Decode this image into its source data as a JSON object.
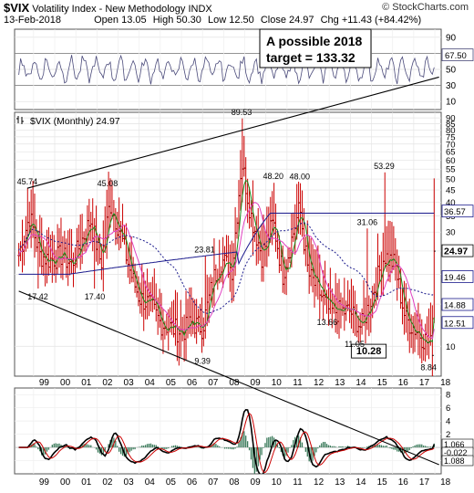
{
  "header": {
    "symbol": "$VIX",
    "name": "Volatility Index - New Methodology",
    "exchange": "INDX",
    "date": "13-Feb-2018",
    "open_label": "Open",
    "open": "13.05",
    "high_label": "High",
    "high": "50.30",
    "low_label": "Low",
    "low": "12.50",
    "close_label": "Close",
    "close": "24.97",
    "chg_label": "Chg",
    "chg": "+11.43 (+84.42%)",
    "credit": "© StockCharts.com"
  },
  "annotation": {
    "line1": "A possible 2018",
    "line2": "target = 133.32"
  },
  "colors": {
    "price_bars": "#cc0000",
    "ma_short": "#1a8a1a",
    "ma_mid": "#e040c0",
    "ma_long": "#1a1a8c",
    "ma_dashed": "#1a1a8c",
    "rsi_line": "#4a4a7a",
    "macd_line": "#000000",
    "signal_line": "#cc0000",
    "histogram": "#3a7a5a",
    "trendlines": "#000000",
    "frame": "#555555"
  },
  "chart_data": [
    {
      "type": "line",
      "panel": "rsi",
      "title": "",
      "ylim": [
        0,
        100
      ],
      "yticks": [
        10,
        30,
        50,
        70,
        90
      ],
      "reference_lines": [
        30,
        70
      ],
      "last_value_label": "67.50",
      "grid": true
    },
    {
      "type": "candlestick",
      "panel": "price",
      "title": "$VIX (Monthly) 24.97",
      "scale": "log",
      "ylim": [
        7.5,
        95
      ],
      "yticks": [
        10,
        15,
        20,
        25,
        30,
        35,
        40,
        45,
        50,
        55,
        60,
        65,
        70,
        75,
        80,
        85,
        90
      ],
      "x_tick_labels": [
        "99",
        "00",
        "01",
        "02",
        "03",
        "04",
        "05",
        "06",
        "07",
        "08",
        "09",
        "10",
        "11",
        "12",
        "13",
        "14",
        "15",
        "16",
        "17",
        "18"
      ],
      "x_years": [
        1999,
        2000,
        2001,
        2002,
        2003,
        2004,
        2005,
        2006,
        2007,
        2008,
        2009,
        2010,
        2011,
        2012,
        2013,
        2014,
        2015,
        2016,
        2017,
        2018
      ],
      "series_anchors": [
        {
          "x": 1998.3,
          "y": 24
        },
        {
          "x": 1998.8,
          "y": 35
        },
        {
          "x": 1999.3,
          "y": 24
        },
        {
          "x": 1999.8,
          "y": 23
        },
        {
          "x": 2000.3,
          "y": 24
        },
        {
          "x": 2000.8,
          "y": 22
        },
        {
          "x": 2001.3,
          "y": 28
        },
        {
          "x": 2001.7,
          "y": 34
        },
        {
          "x": 2002.2,
          "y": 22
        },
        {
          "x": 2002.6,
          "y": 40
        },
        {
          "x": 2003.1,
          "y": 30
        },
        {
          "x": 2003.6,
          "y": 20
        },
        {
          "x": 2004.0,
          "y": 16
        },
        {
          "x": 2004.5,
          "y": 15
        },
        {
          "x": 2005.0,
          "y": 12.5
        },
        {
          "x": 2005.5,
          "y": 12
        },
        {
          "x": 2006.0,
          "y": 11.5
        },
        {
          "x": 2006.5,
          "y": 12.5
        },
        {
          "x": 2007.0,
          "y": 12
        },
        {
          "x": 2007.5,
          "y": 19
        },
        {
          "x": 2007.9,
          "y": 23
        },
        {
          "x": 2008.4,
          "y": 21
        },
        {
          "x": 2008.85,
          "y": 60
        },
        {
          "x": 2009.3,
          "y": 35
        },
        {
          "x": 2009.8,
          "y": 24
        },
        {
          "x": 2010.35,
          "y": 33
        },
        {
          "x": 2010.8,
          "y": 20
        },
        {
          "x": 2011.6,
          "y": 38
        },
        {
          "x": 2012.0,
          "y": 20
        },
        {
          "x": 2012.5,
          "y": 17
        },
        {
          "x": 2013.0,
          "y": 14
        },
        {
          "x": 2013.5,
          "y": 14
        },
        {
          "x": 2014.0,
          "y": 14
        },
        {
          "x": 2014.5,
          "y": 12
        },
        {
          "x": 2015.0,
          "y": 16
        },
        {
          "x": 2015.6,
          "y": 24
        },
        {
          "x": 2016.1,
          "y": 22
        },
        {
          "x": 2016.6,
          "y": 13
        },
        {
          "x": 2017.2,
          "y": 11.5
        },
        {
          "x": 2017.6,
          "y": 10.5
        },
        {
          "x": 2017.9,
          "y": 10
        },
        {
          "x": 2018.12,
          "y": 24.97
        }
      ],
      "peak_labels": [
        {
          "text": "45.74",
          "x": 1998.7,
          "y": 45.74
        },
        {
          "text": "45.08",
          "x": 2002.5,
          "y": 45.08
        },
        {
          "text": "23.81",
          "x": 2007.1,
          "y": 23.81
        },
        {
          "text": "89.53",
          "x": 2008.85,
          "y": 89.53
        },
        {
          "text": "48.20",
          "x": 2010.35,
          "y": 48.2
        },
        {
          "text": "48.00",
          "x": 2011.6,
          "y": 48.0
        },
        {
          "text": "31.06",
          "x": 2014.8,
          "y": 31.06
        },
        {
          "text": "53.29",
          "x": 2015.6,
          "y": 53.29
        }
      ],
      "trough_labels": [
        {
          "text": "17.42",
          "x": 1999.2,
          "y": 17.42
        },
        {
          "text": "17.40",
          "x": 2001.9,
          "y": 17.4
        },
        {
          "text": "9.39",
          "x": 2007.0,
          "y": 9.39
        },
        {
          "text": "13.66",
          "x": 2012.9,
          "y": 13.66
        },
        {
          "text": "11.05",
          "x": 2014.2,
          "y": 11.05
        },
        {
          "text": "10.28",
          "x": 2014.7,
          "y": 10.28
        },
        {
          "text": "8.84",
          "x": 2017.7,
          "y": 8.84
        }
      ],
      "right_axis_values": [
        "36.57",
        "24.97",
        "19.46",
        "14.88",
        "12.51"
      ],
      "trendlines": [
        {
          "name": "upper",
          "from": {
            "x": 1998.7,
            "y": 45.74
          },
          "to": {
            "x": 2018.2,
            "y": 133.32
          }
        },
        {
          "name": "lower",
          "from": {
            "x": 1998.3,
            "y": 17.0
          },
          "to": {
            "x": 2018.2,
            "y": 3.2
          }
        }
      ]
    },
    {
      "type": "line",
      "panel": "macd",
      "title": "",
      "ylim": [
        -4,
        9
      ],
      "yticks": [
        -2,
        0,
        2,
        4,
        6,
        8
      ],
      "right_axis_values": [
        "1.066",
        "-0.022",
        "1.088"
      ],
      "grid": true
    }
  ]
}
